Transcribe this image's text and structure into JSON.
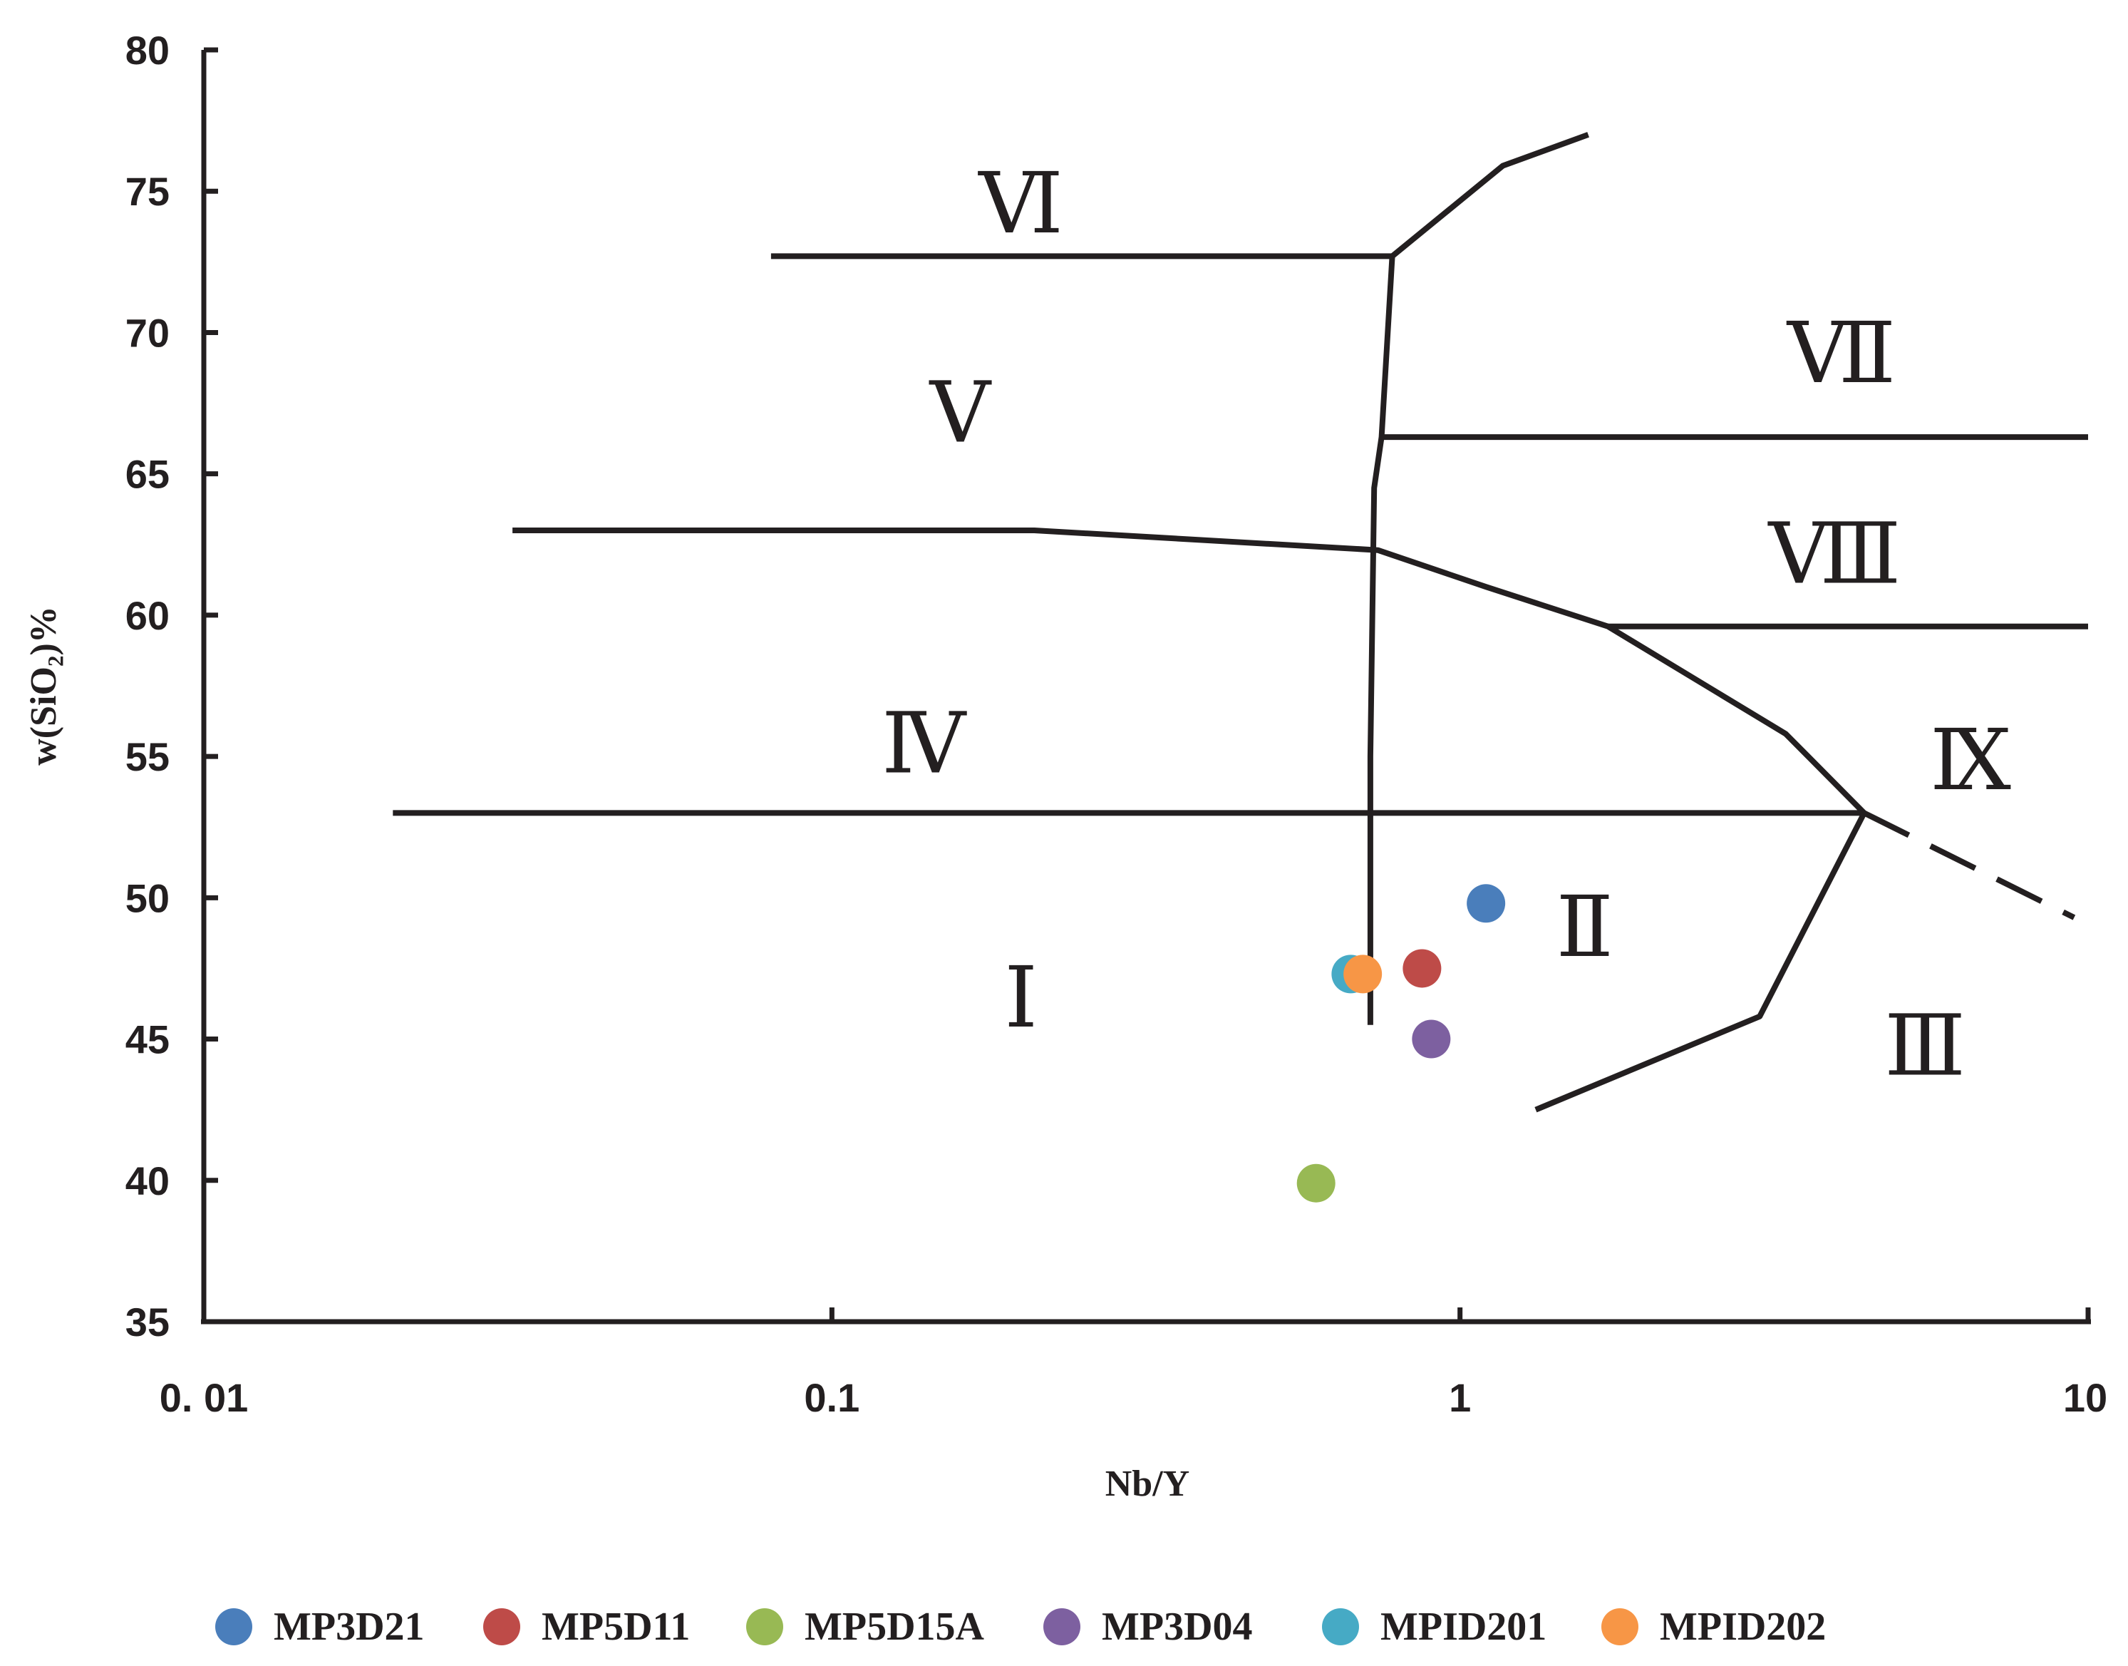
{
  "chart_data": {
    "type": "scatter",
    "title": "",
    "xlabel": "Nb/Y",
    "ylabel": "w(SiO₂)%",
    "x_scale": "log",
    "xlim": [
      0.01,
      10
    ],
    "ylim": [
      35,
      80
    ],
    "x_ticks": [
      {
        "value": 0.01,
        "label": "0. 01"
      },
      {
        "value": 0.1,
        "label": "0.1"
      },
      {
        "value": 1,
        "label": "1"
      },
      {
        "value": 10,
        "label": "10"
      }
    ],
    "y_ticks": [
      35,
      40,
      45,
      50,
      55,
      60,
      65,
      70,
      75,
      80
    ],
    "grid": false,
    "legend_position": "bottom",
    "series": [
      {
        "name": "MP3D21",
        "color": "#4a7ebb",
        "points": [
          {
            "x": 1.1,
            "y": 49.8
          }
        ]
      },
      {
        "name": "MP5D11",
        "color": "#be4b48",
        "points": [
          {
            "x": 0.87,
            "y": 47.5
          }
        ]
      },
      {
        "name": "MP5D15A",
        "color": "#98b954",
        "points": [
          {
            "x": 0.59,
            "y": 39.9
          }
        ]
      },
      {
        "name": "MP3D04",
        "color": "#7d60a0",
        "points": [
          {
            "x": 0.9,
            "y": 45.0
          }
        ]
      },
      {
        "name": "MPID201",
        "color": "#46aac5",
        "points": [
          {
            "x": 0.67,
            "y": 47.3
          }
        ]
      },
      {
        "name": "MPID202",
        "color": "#f79646",
        "points": [
          {
            "x": 0.7,
            "y": 47.3
          }
        ]
      }
    ],
    "boundaries": [
      {
        "name": "vertical-divider",
        "style": "solid",
        "points": [
          [
            0.72,
            45.5
          ],
          [
            0.72,
            55
          ],
          [
            0.73,
            64.5
          ],
          [
            0.75,
            66.3
          ],
          [
            0.78,
            72.7
          ],
          [
            1.17,
            75.9
          ],
          [
            1.6,
            77.0
          ]
        ]
      },
      {
        "name": "line-vi-v",
        "style": "solid",
        "points": [
          [
            0.08,
            72.7
          ],
          [
            0.78,
            72.7
          ]
        ]
      },
      {
        "name": "line-v-iv",
        "style": "solid",
        "points": [
          [
            0.031,
            63.0
          ],
          [
            0.21,
            63.0
          ],
          [
            0.74,
            62.3
          ],
          [
            1.1,
            61.0
          ],
          [
            1.72,
            59.6
          ],
          [
            3.3,
            55.8
          ],
          [
            4.4,
            53.0
          ]
        ]
      },
      {
        "name": "line-vii-viii",
        "style": "solid",
        "points": [
          [
            0.75,
            66.3
          ],
          [
            10,
            66.3
          ]
        ]
      },
      {
        "name": "line-viii-ix",
        "style": "solid",
        "points": [
          [
            1.72,
            59.6
          ],
          [
            10,
            59.6
          ]
        ]
      },
      {
        "name": "line-iv-i",
        "style": "solid",
        "points": [
          [
            0.02,
            53.0
          ],
          [
            4.4,
            53.0
          ]
        ]
      },
      {
        "name": "line-ii-iii",
        "style": "solid",
        "points": [
          [
            1.32,
            42.5
          ],
          [
            3.0,
            45.8
          ],
          [
            4.4,
            53.0
          ]
        ]
      },
      {
        "name": "line-dashed-ix-iii",
        "style": "dashed",
        "points": [
          [
            4.4,
            53.0
          ],
          [
            9.5,
            49.3
          ]
        ]
      }
    ],
    "regions": [
      {
        "label": "Ⅰ",
        "x": 0.2,
        "y": 46.5
      },
      {
        "label": "Ⅱ",
        "x": 1.58,
        "y": 49.0
      },
      {
        "label": "Ⅲ",
        "x": 5.5,
        "y": 44.8
      },
      {
        "label": "Ⅳ",
        "x": 0.14,
        "y": 55.5
      },
      {
        "label": "Ⅴ",
        "x": 0.16,
        "y": 67.2
      },
      {
        "label": "Ⅵ",
        "x": 0.2,
        "y": 74.6
      },
      {
        "label": "Ⅶ",
        "x": 4.05,
        "y": 69.3
      },
      {
        "label": "Ⅷ",
        "x": 3.95,
        "y": 62.2
      },
      {
        "label": "Ⅸ",
        "x": 6.5,
        "y": 54.9
      }
    ]
  }
}
